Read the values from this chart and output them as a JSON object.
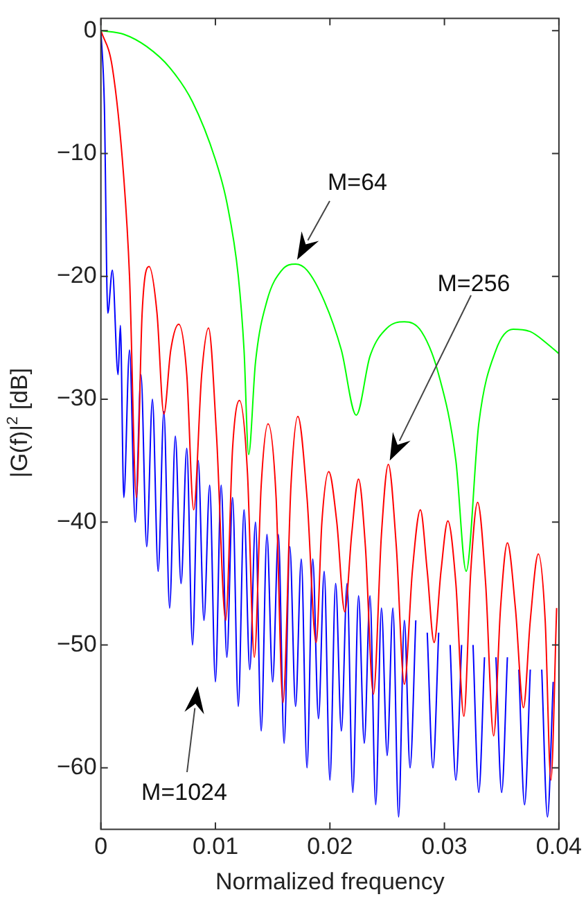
{
  "chart_data": {
    "type": "line",
    "xlabel": "Normalized frequency",
    "ylabel": "|G(f)|$^{2}$ [dB]",
    "xlim": [
      0,
      0.04
    ],
    "xticks": [
      0,
      0.01,
      0.02,
      0.03,
      0.04
    ],
    "ylim": [
      -65,
      1
    ],
    "yticks": [
      -60,
      -50,
      -40,
      -30,
      -20,
      -10,
      0
    ],
    "grid": false,
    "legend": false,
    "marker": "none",
    "line_style": "solid",
    "series": [
      {
        "color": "#00ff00",
        "x": [
          0,
          0.002,
          0.004,
          0.006,
          0.008,
          0.01,
          0.011,
          0.012,
          0.0125,
          0.0129,
          0.0135,
          0.0145,
          0.0158,
          0.017,
          0.018,
          0.0195,
          0.021,
          0.0223,
          0.0235,
          0.025,
          0.0265,
          0.028,
          0.0295,
          0.031,
          0.0319,
          0.033,
          0.0345,
          0.036,
          0.0375,
          0.039,
          0.04
        ],
        "values": [
          0,
          -0.3,
          -1.3,
          -3,
          -5.8,
          -10.5,
          -14,
          -20,
          -26,
          -34.5,
          -27,
          -22,
          -19.5,
          -19,
          -19.5,
          -22,
          -26,
          -31.3,
          -26.5,
          -24.2,
          -23.7,
          -24.5,
          -28,
          -35,
          -44,
          -32,
          -26,
          -24.3,
          -24.5,
          -25.5,
          -26.3
        ]
      },
      {
        "color": "#ff0000",
        "x": [
          0,
          0.001,
          0.002,
          0.0025,
          0.0031,
          0.0036,
          0.0042,
          0.0049,
          0.0055,
          0.0061,
          0.0068,
          0.0075,
          0.0081,
          0.0088,
          0.0094,
          0.0101,
          0.0109,
          0.0115,
          0.0121,
          0.0128,
          0.0134,
          0.014,
          0.0146,
          0.0153,
          0.0159,
          0.0166,
          0.0172,
          0.018,
          0.0188,
          0.0193,
          0.0199,
          0.0206,
          0.0213,
          0.0219,
          0.0225,
          0.0231,
          0.0238,
          0.0245,
          0.0251,
          0.0258,
          0.0265,
          0.0272,
          0.0279,
          0.0285,
          0.0291,
          0.0297,
          0.0303,
          0.031,
          0.0317,
          0.0323,
          0.0329,
          0.0336,
          0.0343,
          0.0349,
          0.0355,
          0.0362,
          0.0369,
          0.0375,
          0.0382,
          0.0388,
          0.0393,
          0.0398
        ],
        "values": [
          0,
          -3,
          -12,
          -20,
          -38,
          -23,
          -19.2,
          -23,
          -31.2,
          -26,
          -23.9,
          -28,
          -39,
          -28,
          -24.2,
          -33,
          -48,
          -34,
          -30.1,
          -36,
          -51,
          -37,
          -32,
          -38,
          -54.7,
          -37,
          -31.4,
          -38,
          -49.8,
          -40,
          -35.9,
          -40,
          -47.3,
          -41,
          -36.5,
          -42,
          -54,
          -41,
          -35.3,
          -42,
          -53.2,
          -44,
          -39,
          -44,
          -49.8,
          -44,
          -39.9,
          -45,
          -55.8,
          -44,
          -38.4,
          -45,
          -57.4,
          -47,
          -41.7,
          -47,
          -55.1,
          -48,
          -42.6,
          -48,
          -61,
          -47
        ]
      },
      {
        "color": "#0000ff",
        "x": [
          0,
          0.0003,
          0.0006,
          0.001,
          0.0015,
          0.0017,
          0.002,
          0.0025,
          0.003,
          0.0035,
          0.004,
          0.0045,
          0.005,
          0.0055,
          0.006,
          0.0065,
          0.007,
          0.0075,
          0.008,
          0.0085,
          0.009,
          0.0095,
          0.01,
          0.0105,
          0.011,
          0.0115,
          0.012,
          0.0125,
          0.013,
          0.0135,
          0.014,
          0.0145,
          0.015,
          0.0155,
          0.016,
          0.0165,
          0.017,
          0.0175,
          0.018,
          0.0185,
          0.019,
          0.0195,
          0.02,
          0.0205,
          0.021,
          0.0215,
          0.022,
          0.0225,
          0.023,
          0.0235,
          0.024,
          0.0245,
          0.025,
          0.0255,
          0.026,
          0.0265,
          0.027,
          0.0275,
          0.028,
          0.0285,
          0.029,
          0.0295,
          0.03,
          0.0305,
          0.031,
          0.0315,
          0.032,
          0.0325,
          0.033,
          0.0335,
          0.034,
          0.0345,
          0.035,
          0.0355,
          0.036,
          0.0365,
          0.037,
          0.0375,
          0.038,
          0.0385,
          0.039,
          0.0395
        ],
        "values": [
          0,
          -6,
          -23,
          -19.5,
          -28,
          -24,
          -38,
          -26,
          -40,
          -28,
          -42,
          -30,
          -44,
          -31,
          -47,
          -33,
          -45,
          -34,
          -50,
          -35,
          -48,
          -37,
          -53,
          -37,
          -51,
          -38,
          -55,
          -39,
          -52,
          -40,
          -57,
          -41,
          -53,
          -41,
          -58,
          -42,
          -55,
          -43,
          -60,
          -43,
          -56,
          -44,
          -61,
          -45,
          -57,
          -45,
          -62,
          -46,
          -58,
          -46,
          -63,
          -47,
          -59,
          -47,
          -64,
          -48,
          -60,
          -48,
          null,
          -49,
          -60,
          -49,
          null,
          -50,
          -61,
          -50,
          null,
          -50,
          -62,
          -51,
          null,
          -51,
          -62,
          -51,
          null,
          -52,
          -63,
          -52,
          null,
          -52,
          -64,
          -53
        ]
      }
    ],
    "annotations": [
      "M=64",
      "M=256",
      "M=1024"
    ]
  }
}
